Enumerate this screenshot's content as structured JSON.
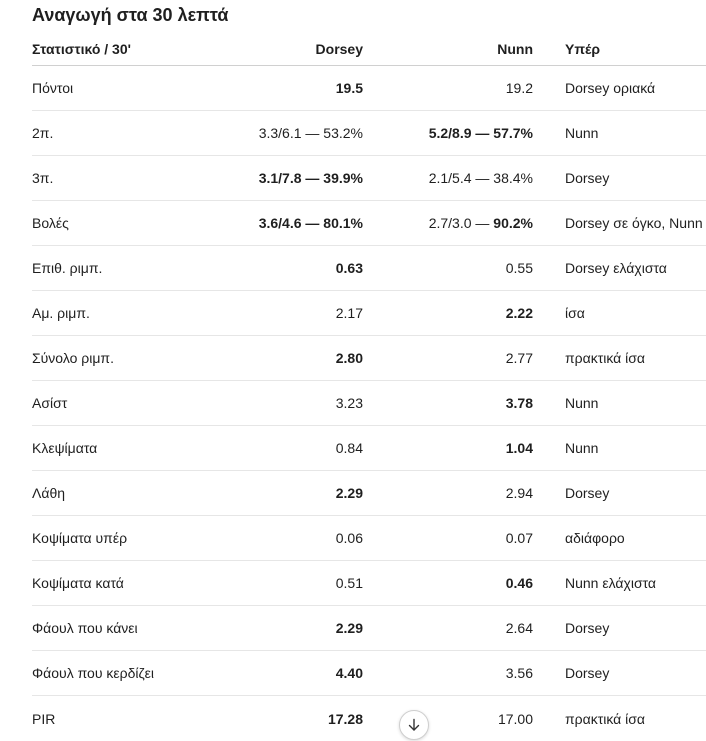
{
  "title": "Αναγωγή στα 30 λεπτά",
  "headers": {
    "stat": "Στατιστικό / 30'",
    "dorsey": "Dorsey",
    "nunn": "Nunn",
    "favor": "Υπέρ"
  },
  "rows": [
    {
      "stat": "Πόντοι",
      "dorsey": [
        {
          "t": "19.5",
          "b": true
        }
      ],
      "nunn": [
        {
          "t": "19.2",
          "b": false
        }
      ],
      "favor": "Dorsey οριακά"
    },
    {
      "stat": "2π.",
      "dorsey": [
        {
          "t": "3.3/6.1 — 53.2%",
          "b": false
        }
      ],
      "nunn": [
        {
          "t": "5.2/8.9 — 57.7%",
          "b": true
        }
      ],
      "favor": "Nunn"
    },
    {
      "stat": "3π.",
      "dorsey": [
        {
          "t": "3.1/7.8 — 39.9%",
          "b": true
        }
      ],
      "nunn": [
        {
          "t": "2.1/5.4 — 38.4%",
          "b": false
        }
      ],
      "favor": "Dorsey"
    },
    {
      "stat": "Βολές",
      "dorsey": [
        {
          "t": "3.6/4.6 — 80.1%",
          "b": true
        }
      ],
      "nunn": [
        {
          "t": "2.7/3.0 — ",
          "b": false
        },
        {
          "t": "90.2%",
          "b": true
        }
      ],
      "favor": "Dorsey σε όγκο, Nunn"
    },
    {
      "stat": "Επιθ. ριμπ.",
      "dorsey": [
        {
          "t": "0.63",
          "b": true
        }
      ],
      "nunn": [
        {
          "t": "0.55",
          "b": false
        }
      ],
      "favor": "Dorsey ελάχιστα"
    },
    {
      "stat": "Αμ. ριμπ.",
      "dorsey": [
        {
          "t": "2.17",
          "b": false
        }
      ],
      "nunn": [
        {
          "t": "2.22",
          "b": true
        }
      ],
      "favor": "ίσα"
    },
    {
      "stat": "Σύνολο ριμπ.",
      "dorsey": [
        {
          "t": "2.80",
          "b": true
        }
      ],
      "nunn": [
        {
          "t": "2.77",
          "b": false
        }
      ],
      "favor": "πρακτικά ίσα"
    },
    {
      "stat": "Ασίστ",
      "dorsey": [
        {
          "t": "3.23",
          "b": false
        }
      ],
      "nunn": [
        {
          "t": "3.78",
          "b": true
        }
      ],
      "favor": "Nunn"
    },
    {
      "stat": "Κλεψίματα",
      "dorsey": [
        {
          "t": "0.84",
          "b": false
        }
      ],
      "nunn": [
        {
          "t": "1.04",
          "b": true
        }
      ],
      "favor": "Nunn"
    },
    {
      "stat": "Λάθη",
      "dorsey": [
        {
          "t": "2.29",
          "b": true
        }
      ],
      "nunn": [
        {
          "t": "2.94",
          "b": false
        }
      ],
      "favor": "Dorsey"
    },
    {
      "stat": "Κοψίματα υπέρ",
      "dorsey": [
        {
          "t": "0.06",
          "b": false
        }
      ],
      "nunn": [
        {
          "t": "0.07",
          "b": false
        }
      ],
      "favor": "αδιάφορο"
    },
    {
      "stat": "Κοψίματα κατά",
      "dorsey": [
        {
          "t": "0.51",
          "b": false
        }
      ],
      "nunn": [
        {
          "t": "0.46",
          "b": true
        }
      ],
      "favor": "Nunn ελάχιστα"
    },
    {
      "stat": "Φάουλ που κάνει",
      "dorsey": [
        {
          "t": "2.29",
          "b": true
        }
      ],
      "nunn": [
        {
          "t": "2.64",
          "b": false
        }
      ],
      "favor": "Dorsey"
    },
    {
      "stat": "Φάουλ που κερδίζει",
      "dorsey": [
        {
          "t": "4.40",
          "b": true
        }
      ],
      "nunn": [
        {
          "t": "3.56",
          "b": false
        }
      ],
      "favor": "Dorsey"
    },
    {
      "stat": "PIR",
      "dorsey": [
        {
          "t": "17.28",
          "b": true
        }
      ],
      "nunn": [
        {
          "t": "17.00",
          "b": false
        }
      ],
      "favor": "πρακτικά ίσα"
    }
  ],
  "scroll_button": {
    "icon": "arrow-down-icon"
  }
}
